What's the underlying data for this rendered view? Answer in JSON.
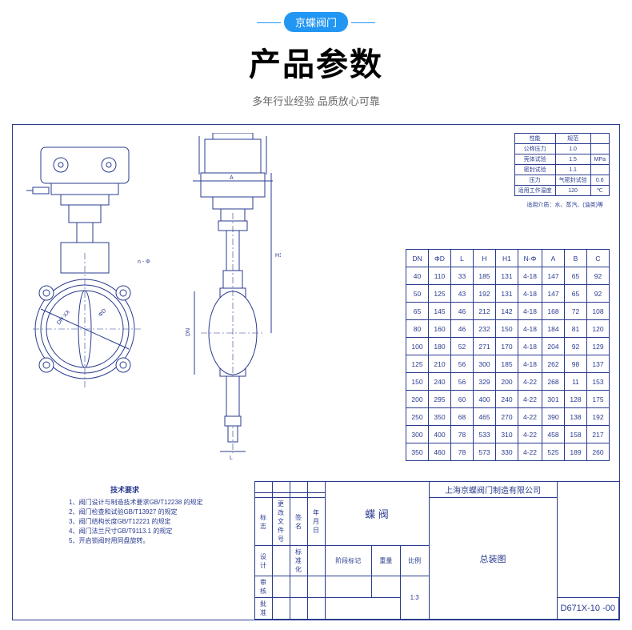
{
  "header": {
    "badge": "京蝶阀门",
    "title": "产品参数",
    "subtitle": "多年行业经验 品质放心可靠"
  },
  "smallTable": {
    "rows": [
      [
        "性能",
        "规范",
        ""
      ],
      [
        "公称压力",
        "1.0",
        ""
      ],
      [
        "壳体试验",
        "1.5",
        "MPa"
      ],
      [
        "密封试验",
        "1.1",
        ""
      ],
      [
        "压力",
        "气密封试验",
        "0.6"
      ],
      [
        "适用工作温度",
        "120",
        "℃"
      ]
    ],
    "note": "适用介质：水、蒸汽、(油类)等"
  },
  "dataTable": {
    "headers": [
      "DN",
      "ΦD",
      "L",
      "H",
      "H1",
      "N-Φ",
      "A",
      "B",
      "C"
    ],
    "rows": [
      [
        "40",
        "110",
        "33",
        "185",
        "131",
        "4-18",
        "147",
        "65",
        "92"
      ],
      [
        "50",
        "125",
        "43",
        "192",
        "131",
        "4-18",
        "147",
        "65",
        "92"
      ],
      [
        "65",
        "145",
        "46",
        "212",
        "142",
        "4-18",
        "168",
        "72",
        "108"
      ],
      [
        "80",
        "160",
        "46",
        "232",
        "150",
        "4-18",
        "184",
        "81",
        "120"
      ],
      [
        "100",
        "180",
        "52",
        "271",
        "170",
        "4-18",
        "204",
        "92",
        "129"
      ],
      [
        "125",
        "210",
        "56",
        "300",
        "185",
        "4-18",
        "262",
        "98",
        "137"
      ],
      [
        "150",
        "240",
        "56",
        "329",
        "200",
        "4-22",
        "268",
        "11",
        "153"
      ],
      [
        "200",
        "295",
        "60",
        "400",
        "240",
        "4-22",
        "301",
        "128",
        "175"
      ],
      [
        "250",
        "350",
        "68",
        "465",
        "270",
        "4-22",
        "390",
        "138",
        "192"
      ],
      [
        "300",
        "400",
        "78",
        "533",
        "310",
        "4-22",
        "458",
        "158",
        "217"
      ],
      [
        "350",
        "460",
        "78",
        "573",
        "330",
        "4-22",
        "525",
        "189",
        "260"
      ]
    ]
  },
  "techReq": {
    "title": "技术要求",
    "items": [
      "1、阀门设计与制造技术要求GB/T12238 的规定",
      "2、阀门检查和试验GB/T13927 的规定",
      "3、阀门结构长度GB/T12221 的规定",
      "4、阀门法兰尺寸GB/T9113.1 的规定",
      "5、开启锁阀时用同盘旋转。"
    ]
  },
  "titleBlock": {
    "company": "上海京蝶阀门制造有限公司",
    "product": "蝶 阀",
    "drawing": "总装图",
    "scale": "1:3",
    "model": "D671X-10 -00",
    "h1": "标志",
    "h2": "更改文件号",
    "h3": "签名",
    "h4": "年月日",
    "h5": "设计",
    "h6": "标准化",
    "h7": "阶段标记",
    "h8": "重量",
    "h9": "比例",
    "h10": "审核",
    "h11": "批准"
  },
  "colors": {
    "accent": "#2196f3",
    "line": "#2a3b8f",
    "text": "#000000",
    "sub": "#666666"
  }
}
